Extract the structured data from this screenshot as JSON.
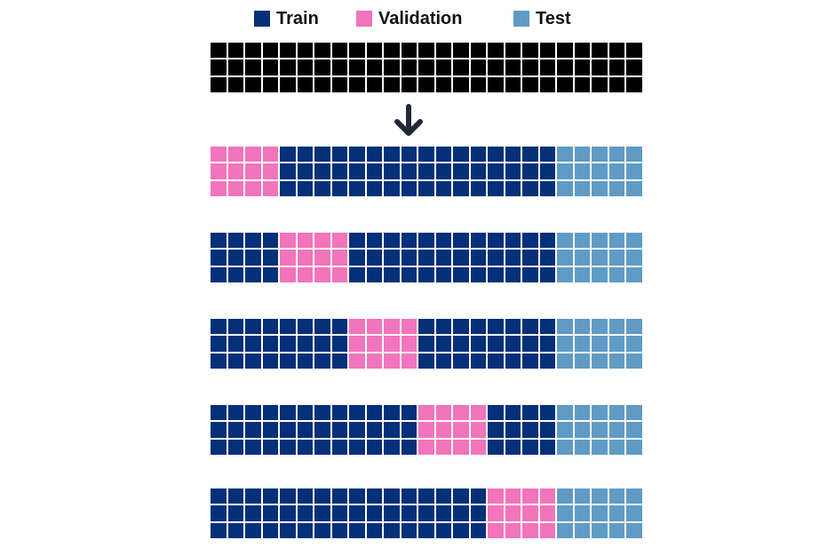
{
  "colors": {
    "train": "#033079",
    "validation": "#f274bc",
    "test": "#609bc5",
    "full": "#000000"
  },
  "legend": [
    {
      "key": "train",
      "label": "Train"
    },
    {
      "key": "validation",
      "label": "Validation"
    },
    {
      "key": "test",
      "label": "Test"
    }
  ],
  "arrow_icon": "arrow-down-icon",
  "grid": {
    "rows": 3,
    "columns": 25
  },
  "full_dataset": {
    "color_key": "full"
  },
  "folds": [
    {
      "validation_columns": [
        0,
        4
      ],
      "test_columns": [
        20,
        25
      ]
    },
    {
      "validation_columns": [
        4,
        8
      ],
      "test_columns": [
        20,
        25
      ]
    },
    {
      "validation_columns": [
        8,
        12
      ],
      "test_columns": [
        20,
        25
      ]
    },
    {
      "validation_columns": [
        12,
        16
      ],
      "test_columns": [
        20,
        25
      ]
    },
    {
      "validation_columns": [
        16,
        20
      ],
      "test_columns": [
        20,
        25
      ]
    }
  ]
}
